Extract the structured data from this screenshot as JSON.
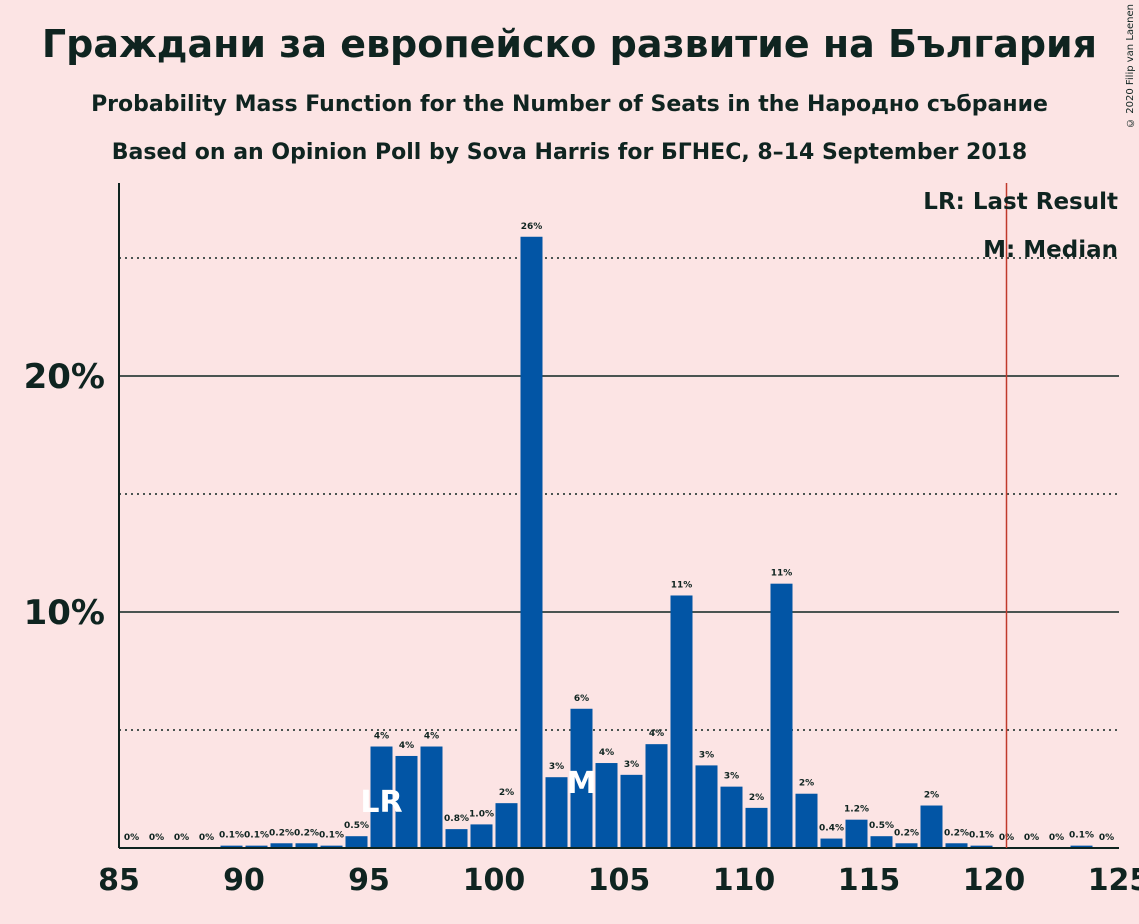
{
  "title": "Граждани за европейско развитие на България",
  "subtitle1": "Probability Mass Function for the Number of Seats in the Народно събрание",
  "subtitle2": "Based on an Opinion Poll by Sova Harris for БГНЕС, 8–14 September 2018",
  "copyright": "© 2020 Filip van Laenen",
  "legend": {
    "lr": "LR: Last Result",
    "m": "M: Median"
  },
  "markers": {
    "lr_text": "LR",
    "m_text": "M"
  },
  "colors": {
    "bar": "#0255a5",
    "last_result_line": "#c0392b",
    "background": "#fce4e4",
    "text": "#0f2420"
  },
  "chart_data": {
    "type": "bar",
    "x": [
      85,
      86,
      87,
      88,
      89,
      90,
      91,
      92,
      93,
      94,
      95,
      96,
      97,
      98,
      99,
      100,
      101,
      102,
      103,
      104,
      105,
      106,
      107,
      108,
      109,
      110,
      111,
      112,
      113,
      114,
      115,
      116,
      117,
      118,
      119,
      120,
      121,
      122,
      123,
      124
    ],
    "values": [
      0,
      0,
      0,
      0,
      0.1,
      0.1,
      0.2,
      0.2,
      0.1,
      0.5,
      4.3,
      3.9,
      4.3,
      0.8,
      1.0,
      1.9,
      25.9,
      3.0,
      5.9,
      3.6,
      3.1,
      4.4,
      10.7,
      3.5,
      2.6,
      1.7,
      11.2,
      2.3,
      0.4,
      1.2,
      0.5,
      0.2,
      1.8,
      0.2,
      0.1,
      0,
      0,
      0,
      0.1,
      0
    ],
    "labels": [
      "0%",
      "0%",
      "0%",
      "0%",
      "0.1%",
      "0.1%",
      "0.2%",
      "0.2%",
      "0.1%",
      "0.5%",
      "4%",
      "4%",
      "4%",
      "0.8%",
      "1.0%",
      "2%",
      "26%",
      "3%",
      "6%",
      "4%",
      "3%",
      "4%",
      "11%",
      "3%",
      "3%",
      "2%",
      "11%",
      "2%",
      "0.4%",
      "1.2%",
      "0.5%",
      "0.2%",
      "2%",
      "0.2%",
      "0.1%",
      "0%",
      "0%",
      "0%",
      "0.1%",
      "0%"
    ],
    "xlim": [
      85,
      125
    ],
    "ylim": [
      0,
      28
    ],
    "x_ticks": [
      "85",
      "90",
      "95",
      "100",
      "105",
      "110",
      "115",
      "120",
      "125"
    ],
    "y_ticks_labeled": [
      {
        "value": 10,
        "label": "10%"
      },
      {
        "value": 20,
        "label": "20%"
      }
    ],
    "y_gridlines_dotted": [
      5,
      15,
      25
    ],
    "last_result": 95,
    "median": 103,
    "threshold_line_x": 120.5
  }
}
